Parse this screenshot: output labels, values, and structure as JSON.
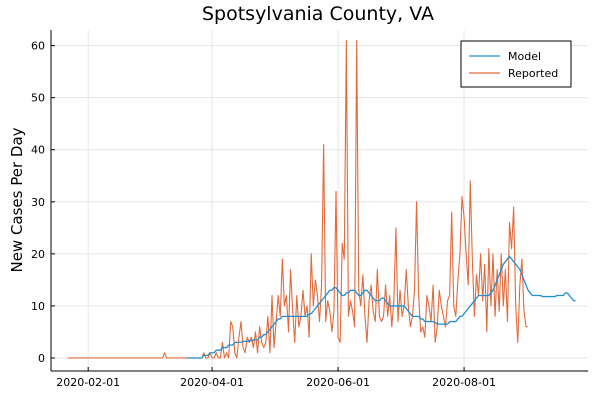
{
  "chart_data": {
    "type": "line",
    "title": "Spotsylvania County, VA",
    "xlabel": "",
    "ylabel": "New Cases Per Day",
    "x_start": "2020-01-22",
    "x_range": [
      "2020-01-14",
      "2020-09-30"
    ],
    "ylim": [
      -2.5,
      63
    ],
    "x_ticks": [
      "2020-02-01",
      "2020-04-01",
      "2020-06-01",
      "2020-08-01"
    ],
    "y_ticks": [
      0,
      10,
      20,
      30,
      40,
      50,
      60
    ],
    "grid": true,
    "legend_position": "top-right",
    "series": [
      {
        "name": "Model",
        "color": "#1f8fd6",
        "start": "2020-03-20",
        "values": [
          0,
          0,
          0,
          0,
          0,
          0,
          0,
          0,
          0.5,
          0.5,
          0.5,
          1,
          1,
          1,
          1.5,
          1.5,
          1.5,
          2,
          2,
          2,
          2.5,
          2.5,
          2.5,
          3,
          3,
          3,
          3,
          3.2,
          3.2,
          3.2,
          3.3,
          3.3,
          3.5,
          3.5,
          3.5,
          4,
          4,
          4.5,
          4.5,
          5,
          5.5,
          6,
          6.5,
          7,
          7.5,
          7.5,
          8,
          8,
          8,
          8,
          8,
          8,
          8,
          8,
          8,
          8,
          8,
          8,
          8,
          8.5,
          8.5,
          9,
          9.5,
          10,
          10.5,
          11,
          11.5,
          12,
          12.5,
          13,
          13,
          13.5,
          13.5,
          13,
          12.5,
          12,
          12,
          12.5,
          12.5,
          13,
          13,
          13,
          12.5,
          12,
          12,
          12.5,
          13,
          13,
          12.5,
          12,
          11.5,
          11,
          11,
          11,
          11.5,
          11.5,
          11,
          10.5,
          10,
          10,
          10,
          10,
          10,
          10,
          10,
          10,
          9.5,
          9,
          8.5,
          8,
          8,
          8,
          8,
          7.5,
          7.5,
          7,
          7,
          7,
          7,
          7,
          6.8,
          6.5,
          6.5,
          6.5,
          6.5,
          6.5,
          6.5,
          7,
          7,
          7,
          7,
          7.5,
          8,
          8,
          8.5,
          9,
          9.5,
          10,
          10.5,
          11,
          11.5,
          12,
          12,
          12,
          12,
          12,
          12,
          12.5,
          13,
          14,
          15,
          16,
          17,
          18,
          18.5,
          19,
          19.5,
          19,
          18.5,
          18,
          17.5,
          17,
          16,
          15,
          14,
          13,
          12.5,
          12,
          12,
          12,
          12,
          12,
          11.8,
          11.8,
          11.8,
          11.8,
          11.8,
          11.8,
          11.8,
          12,
          12,
          12,
          12,
          12.5,
          12.5,
          12,
          11.5,
          11,
          11
        ]
      },
      {
        "name": "Reported",
        "color": "#e26a3c",
        "start": "2020-01-22",
        "values": [
          0,
          0,
          0,
          0,
          0,
          0,
          0,
          0,
          0,
          0,
          0,
          0,
          0,
          0,
          0,
          0,
          0,
          0,
          0,
          0,
          0,
          0,
          0,
          0,
          0,
          0,
          0,
          0,
          0,
          0,
          0,
          0,
          0,
          0,
          0,
          0,
          0,
          0,
          0,
          0,
          0,
          0,
          0,
          0,
          0,
          0,
          0,
          1,
          0,
          0,
          0,
          0,
          0,
          0,
          0,
          0,
          0,
          0,
          0,
          0,
          0,
          0,
          0,
          0,
          0,
          0,
          1,
          0,
          0,
          1,
          0,
          0,
          1,
          0,
          0,
          3,
          0,
          1,
          0,
          7,
          6,
          1,
          0,
          4,
          7,
          2,
          1,
          4,
          3,
          4,
          2,
          5,
          1,
          6,
          3,
          2,
          3,
          8,
          1,
          12,
          2,
          7,
          12,
          8,
          19,
          10,
          12,
          5,
          17,
          9,
          3,
          12,
          6,
          8,
          13,
          8,
          10,
          4,
          20,
          10,
          15,
          12,
          7,
          14,
          41,
          7,
          11,
          9,
          5,
          9,
          32,
          4,
          3,
          22,
          19,
          61,
          8,
          11,
          9,
          6,
          61,
          13,
          10,
          16,
          8,
          3,
          11,
          14,
          9,
          7,
          17,
          8,
          7,
          8,
          14,
          8,
          12,
          6,
          11,
          25,
          7,
          13,
          8,
          10,
          17,
          10,
          6,
          8,
          13,
          30,
          12,
          5,
          6,
          4,
          12,
          10,
          7,
          14,
          3,
          6,
          13,
          10,
          8,
          6,
          11,
          12,
          28,
          10,
          8,
          15,
          20,
          31,
          27,
          20,
          14,
          34,
          19,
          8,
          16,
          12,
          20,
          11,
          18,
          5,
          21,
          10,
          20,
          8,
          17,
          9,
          20,
          10,
          17,
          7,
          26,
          21,
          29,
          10,
          3,
          14,
          19,
          9,
          6,
          6
        ]
      }
    ]
  }
}
